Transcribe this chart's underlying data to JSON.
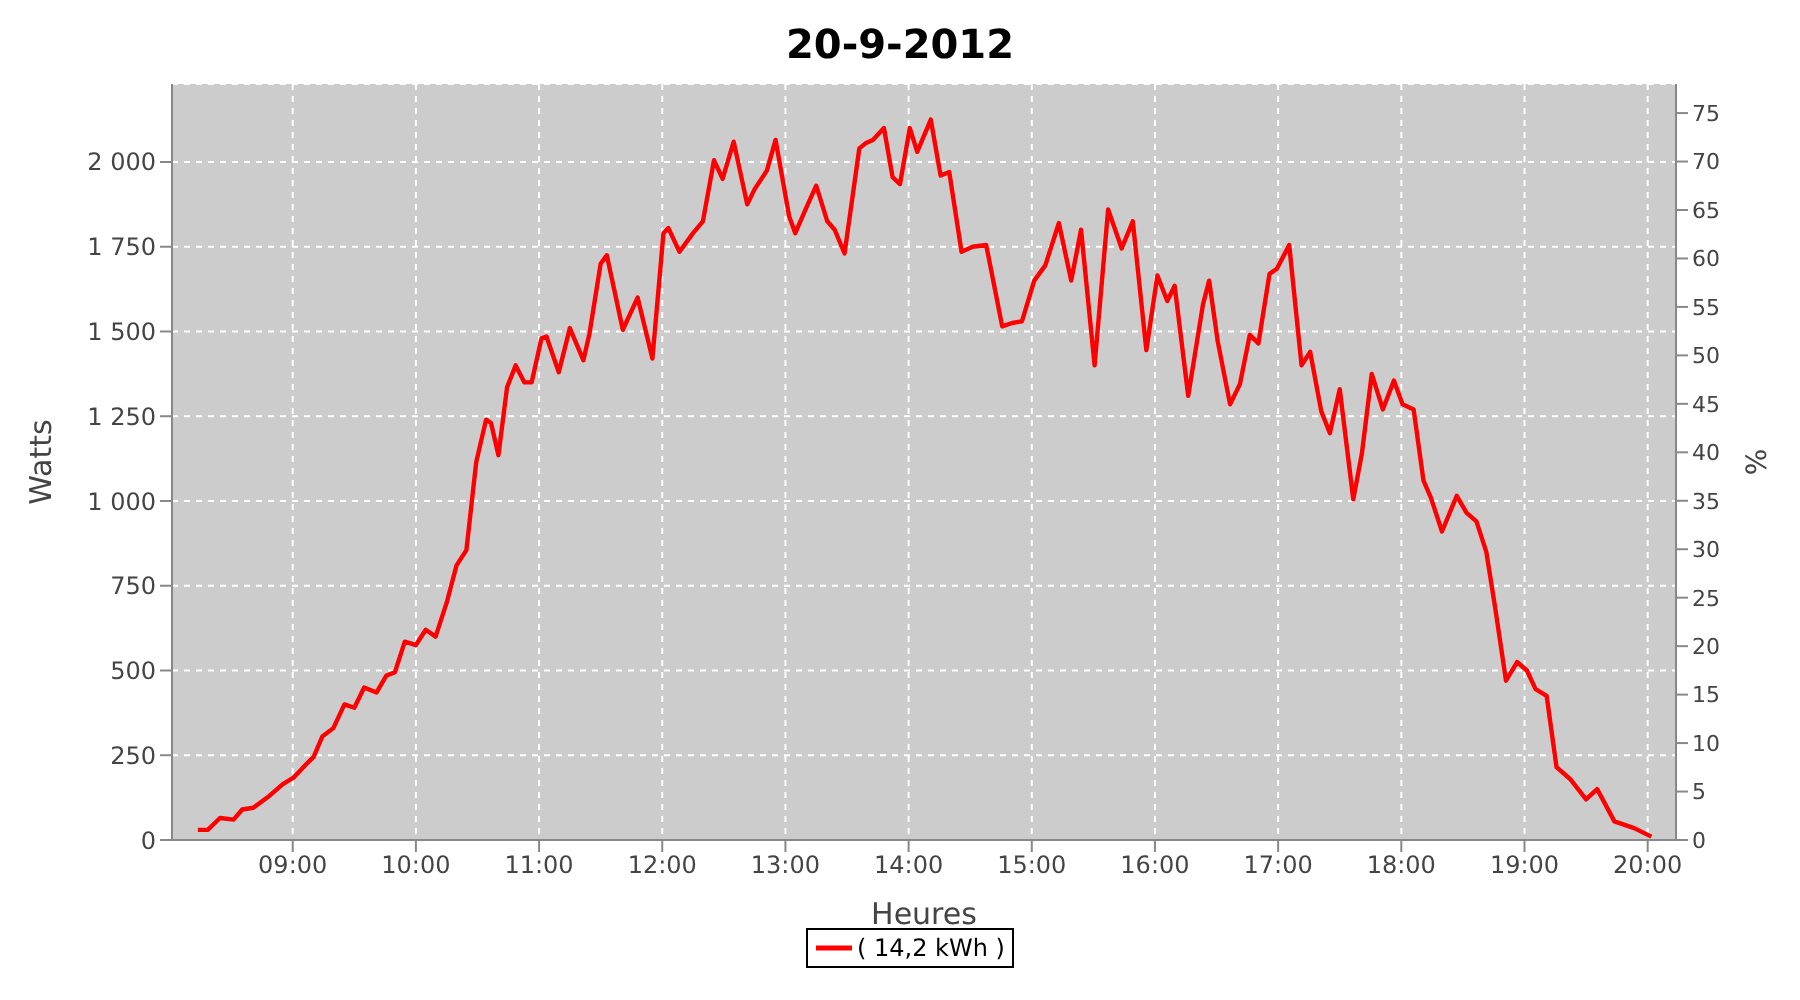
{
  "chart_data": {
    "type": "line",
    "title": "20-9-2012",
    "xlabel": "Heures",
    "ylabel": "Watts",
    "y2label": "%",
    "x": [
      8.23,
      8.31,
      8.41,
      8.52,
      8.59,
      8.68,
      8.81,
      8.92,
      9.01,
      9.1,
      9.17,
      9.24,
      9.33,
      9.42,
      9.5,
      9.58,
      9.68,
      9.76,
      9.83,
      9.91,
      10.0,
      10.08,
      10.16,
      10.25,
      10.33,
      10.41,
      10.49,
      10.57,
      10.61,
      10.67,
      10.74,
      10.81,
      10.88,
      10.94,
      11.02,
      11.06,
      11.16,
      11.25,
      11.36,
      11.41,
      11.5,
      11.55,
      11.68,
      11.8,
      11.92,
      12.01,
      12.05,
      12.14,
      12.25,
      12.33,
      12.42,
      12.49,
      12.58,
      12.69,
      12.75,
      12.85,
      12.92,
      13.03,
      13.08,
      13.17,
      13.25,
      13.34,
      13.4,
      13.48,
      13.6,
      13.65,
      13.71,
      13.8,
      13.87,
      13.93,
      14.01,
      14.07,
      14.18,
      14.26,
      14.33,
      14.43,
      14.52,
      14.63,
      14.76,
      14.84,
      14.92,
      15.02,
      15.11,
      15.22,
      15.32,
      15.4,
      15.51,
      15.62,
      15.73,
      15.82,
      15.93,
      16.02,
      16.1,
      16.16,
      16.27,
      16.39,
      16.44,
      16.51,
      16.61,
      16.69,
      16.77,
      16.84,
      16.93,
      16.99,
      17.09,
      17.19,
      17.26,
      17.35,
      17.42,
      17.5,
      17.61,
      17.68,
      17.76,
      17.85,
      17.94,
      18.01,
      18.1,
      18.18,
      18.24,
      18.33,
      18.45,
      18.53,
      18.61,
      18.69,
      18.76,
      18.85,
      18.94,
      19.02,
      19.09,
      19.18,
      19.26,
      19.37,
      19.5,
      19.59,
      19.73,
      19.89,
      20.03
    ],
    "series": [
      {
        "name": "( 14,2 kWh )",
        "color": "#ff0000",
        "values": [
          30,
          30,
          65,
          60,
          90,
          95,
          130,
          165,
          185,
          220,
          245,
          305,
          330,
          400,
          390,
          450,
          435,
          485,
          495,
          585,
          575,
          620,
          600,
          700,
          810,
          855,
          1115,
          1240,
          1230,
          1135,
          1335,
          1400,
          1350,
          1350,
          1480,
          1485,
          1380,
          1510,
          1415,
          1495,
          1700,
          1725,
          1505,
          1600,
          1420,
          1790,
          1805,
          1735,
          1790,
          1825,
          2005,
          1950,
          2060,
          1875,
          1920,
          1975,
          2065,
          1840,
          1790,
          1865,
          1930,
          1825,
          1800,
          1730,
          2040,
          2055,
          2065,
          2100,
          1955,
          1935,
          2100,
          2030,
          2125,
          1960,
          1970,
          1735,
          1750,
          1755,
          1515,
          1525,
          1530,
          1650,
          1695,
          1820,
          1650,
          1800,
          1400,
          1860,
          1745,
          1825,
          1445,
          1665,
          1590,
          1635,
          1310,
          1580,
          1650,
          1470,
          1285,
          1345,
          1490,
          1465,
          1670,
          1685,
          1755,
          1400,
          1440,
          1265,
          1200,
          1330,
          1005,
          1140,
          1375,
          1270,
          1355,
          1285,
          1270,
          1060,
          1010,
          910,
          1015,
          965,
          940,
          850,
          690,
          470,
          525,
          500,
          445,
          425,
          215,
          180,
          120,
          150,
          55,
          35,
          10
        ]
      }
    ],
    "xlim": [
      8.02,
      20.23
    ],
    "xticks": [
      {
        "value": 9,
        "label": "09:00"
      },
      {
        "value": 10,
        "label": "10:00"
      },
      {
        "value": 11,
        "label": "11:00"
      },
      {
        "value": 12,
        "label": "12:00"
      },
      {
        "value": 13,
        "label": "13:00"
      },
      {
        "value": 14,
        "label": "14:00"
      },
      {
        "value": 15,
        "label": "15:00"
      },
      {
        "value": 16,
        "label": "16:00"
      },
      {
        "value": 17,
        "label": "17:00"
      },
      {
        "value": 18,
        "label": "18:00"
      },
      {
        "value": 19,
        "label": "19:00"
      },
      {
        "value": 20,
        "label": "20:00"
      }
    ],
    "ylim": [
      0,
      2230
    ],
    "yticks": [
      0,
      250,
      500,
      750,
      {
        "value": 1000,
        "label": "1 000"
      },
      {
        "value": 1250,
        "label": "1 250"
      },
      {
        "value": 1500,
        "label": "1 500"
      },
      {
        "value": 1750,
        "label": "1 750"
      },
      {
        "value": 2000,
        "label": "2 000"
      }
    ],
    "y2lim": [
      0,
      78
    ],
    "y2ticks": [
      0,
      5,
      10,
      15,
      20,
      25,
      30,
      35,
      40,
      45,
      50,
      55,
      60,
      65,
      70,
      75
    ],
    "grid": true,
    "legend": "bottom",
    "marker": "none",
    "line_style": "solid"
  }
}
